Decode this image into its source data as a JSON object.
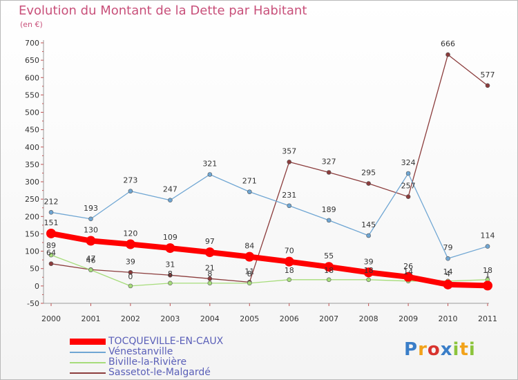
{
  "chart_data": {
    "type": "line",
    "title": "Evolution du Montant de la Dette par Habitant",
    "subtitle": "(en €)",
    "x": [
      "2000",
      "2001",
      "2002",
      "2003",
      "2004",
      "2005",
      "2006",
      "2007",
      "2008",
      "2009",
      "2010",
      "2011"
    ],
    "ylim": [
      -50,
      700
    ],
    "yticks": [
      -50,
      0,
      50,
      100,
      150,
      200,
      250,
      300,
      350,
      400,
      450,
      500,
      550,
      600,
      650,
      700
    ],
    "grid": false,
    "legend": "bottom-left",
    "series": [
      {
        "name": "TOCQUEVILLE-EN-CAUX",
        "color": "#ff0000",
        "width": 8,
        "values": [
          151,
          130,
          120,
          109,
          97,
          84,
          70,
          55,
          39,
          26,
          4,
          1
        ]
      },
      {
        "name": "Vénestanville",
        "color": "#6fa6d3",
        "width": 1.3,
        "values": [
          212,
          193,
          273,
          247,
          321,
          271,
          231,
          189,
          145,
          324,
          79,
          114
        ]
      },
      {
        "name": "Biville-la-Rivière",
        "color": "#a6dc7a",
        "width": 1.3,
        "values": [
          89,
          46,
          0,
          8,
          8,
          8,
          18,
          18,
          18,
          14,
          14,
          18
        ]
      },
      {
        "name": "Sassetot-le-Malgardé",
        "color": "#8b3c3c",
        "width": 1.3,
        "values": [
          64,
          47,
          39,
          31,
          21,
          11,
          357,
          327,
          295,
          257,
          666,
          577
        ]
      }
    ]
  },
  "logo": [
    "P",
    "r",
    "o",
    "x",
    "i",
    "t",
    "i"
  ]
}
